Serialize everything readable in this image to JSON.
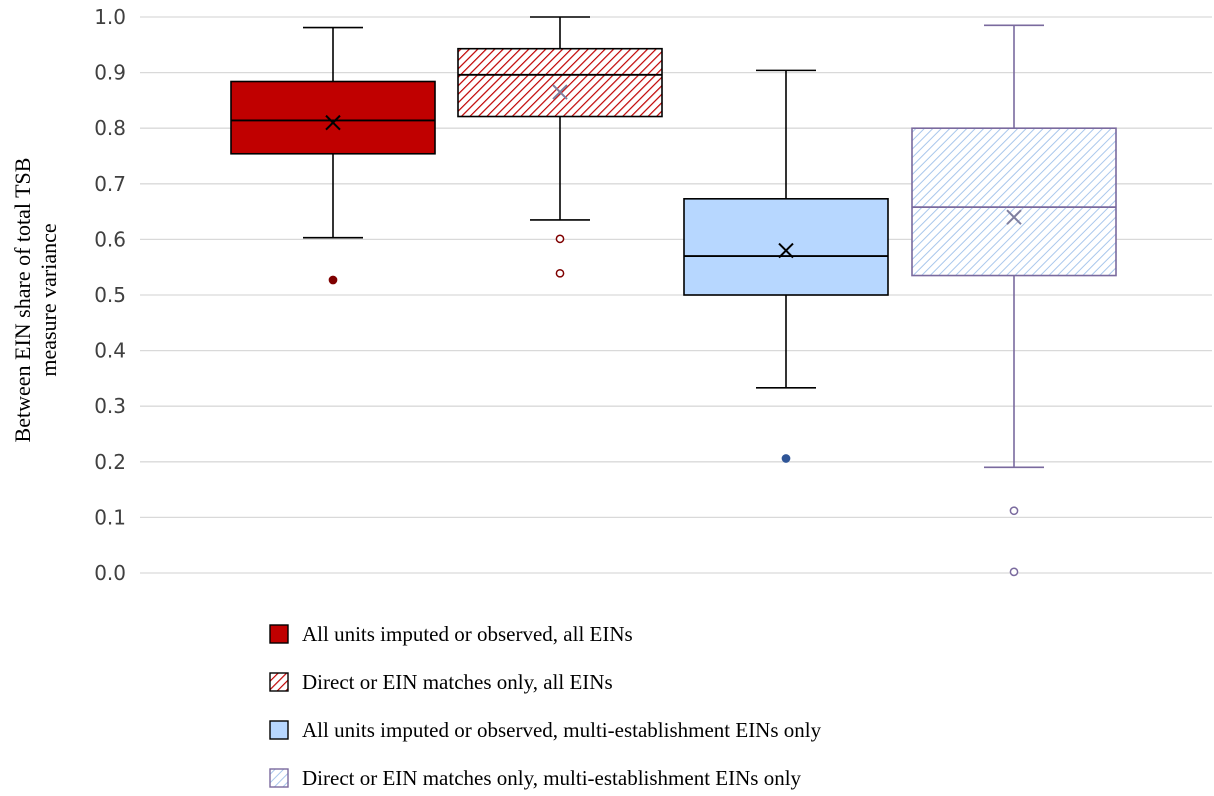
{
  "chart_data": {
    "type": "box",
    "ylabel_lines": [
      "Between EIN share of total TSB",
      "measure variance"
    ],
    "ylim": [
      0,
      1
    ],
    "ytick_step": 0.1,
    "grid": true,
    "legend_position": "bottom",
    "series": [
      {
        "name": "All units imputed or observed, all EINs",
        "fill": "#c00000",
        "stroke": "#000000",
        "pattern": "solid",
        "min": 0.603,
        "q1": 0.754,
        "median": 0.814,
        "q3": 0.884,
        "max": 0.981,
        "mean": 0.81,
        "outliers": [
          0.527
        ],
        "outlier_color": "#7f0000"
      },
      {
        "name": "Direct or EIN matches only, all EINs",
        "fill": "#c00000",
        "stroke": "#000000",
        "pattern": "hatch",
        "min": 0.635,
        "q1": 0.821,
        "median": 0.896,
        "q3": 0.943,
        "max": 1.0,
        "mean": 0.865,
        "outliers": [
          0.601,
          0.539
        ],
        "outlier_color": "#7f0000"
      },
      {
        "name": "All units imputed or observed, multi-establishment EINs only",
        "fill": "#b7d7ff",
        "stroke": "#000000",
        "pattern": "solid",
        "min": 0.333,
        "q1": 0.5,
        "median": 0.57,
        "q3": 0.673,
        "max": 0.904,
        "mean": 0.58,
        "outliers": [
          0.206
        ],
        "outlier_color": "#2f5597"
      },
      {
        "name": "Direct or EIN matches only, multi-establishment EINs only",
        "fill": "#b7d7ff",
        "stroke": "#7a6a9e",
        "pattern": "hatch",
        "min": 0.19,
        "q1": 0.535,
        "median": 0.658,
        "q3": 0.8,
        "max": 0.985,
        "mean": 0.64,
        "outliers": [
          0.112,
          0.002
        ],
        "outlier_color": "#7a6a9e"
      }
    ]
  }
}
